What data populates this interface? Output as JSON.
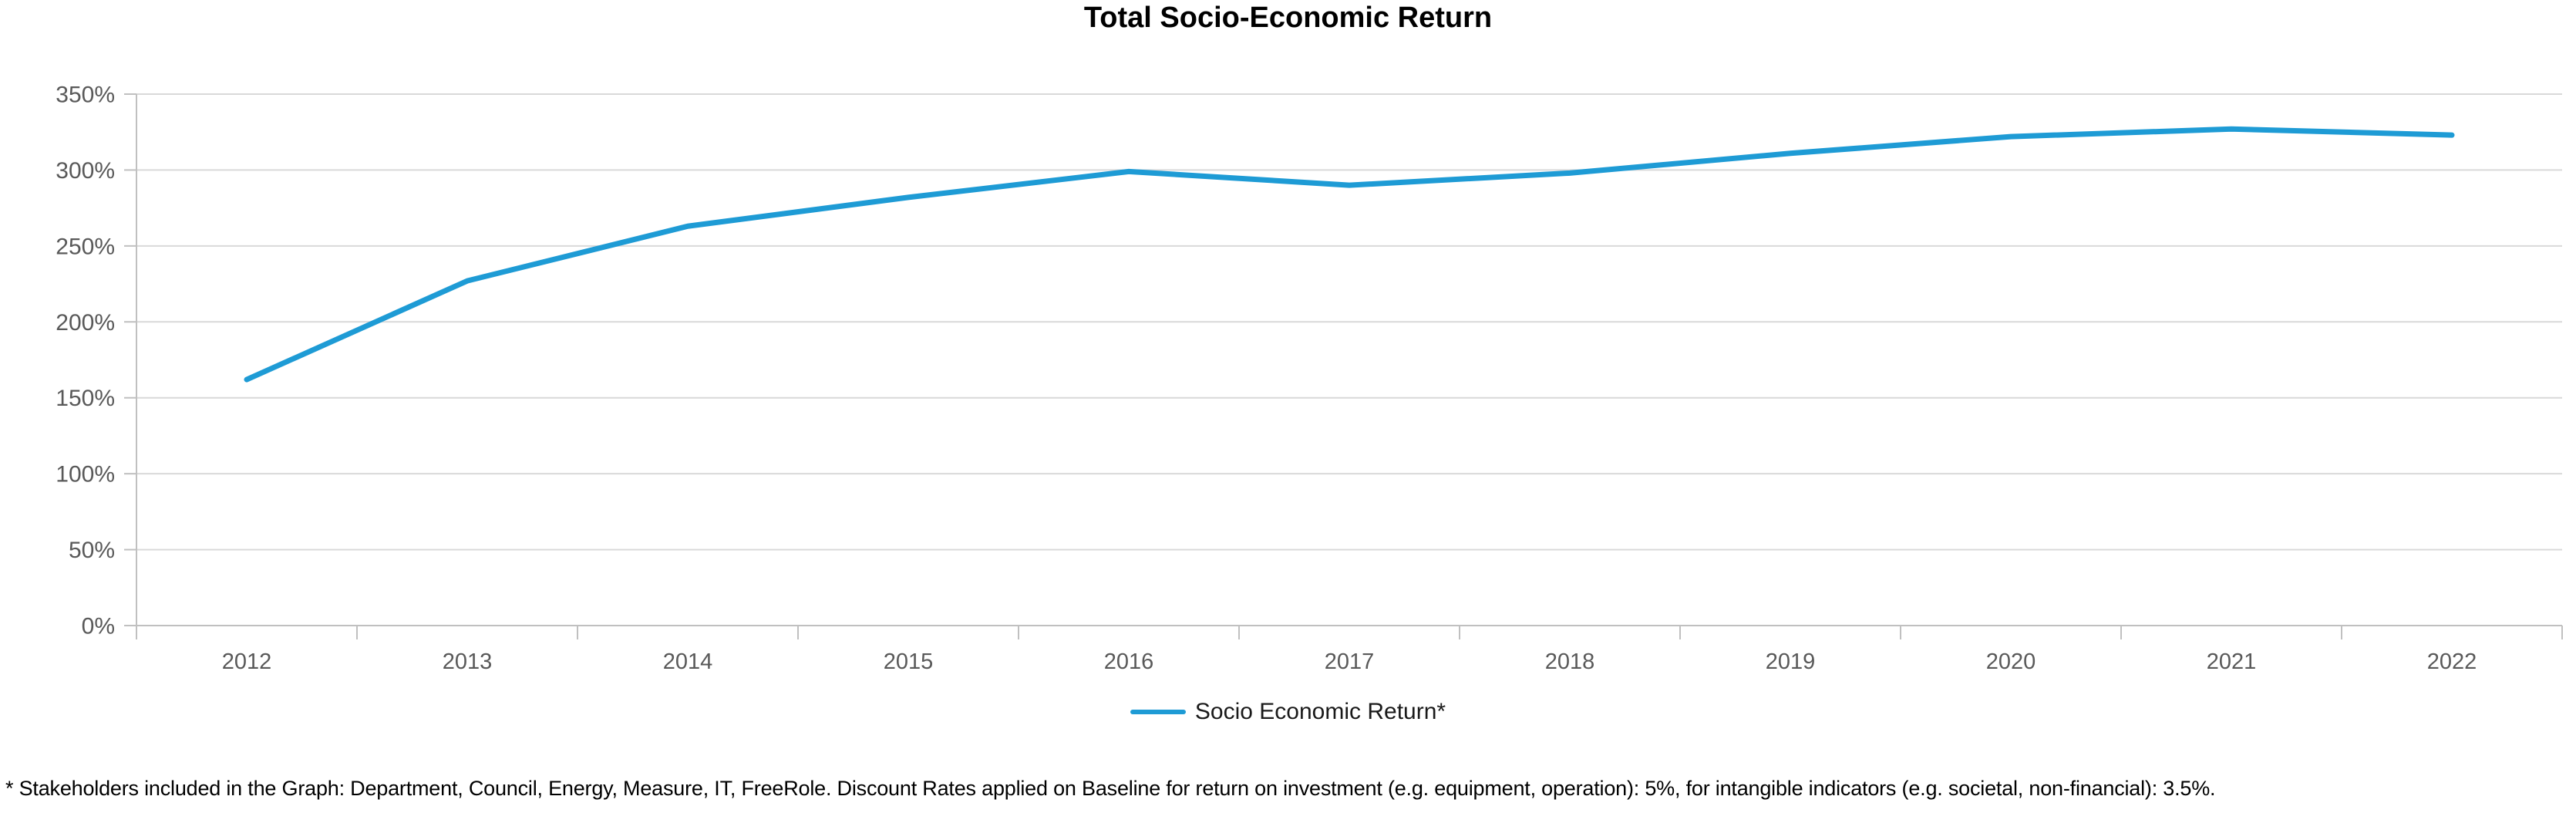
{
  "footnote": "* Stakeholders included in the Graph: Department, Council, Energy, Measure, IT, FreeRole. Discount Rates applied on Baseline for return on investment (e.g. equipment, operation): 5%, for intangible indicators (e.g. societal, non-financial): 3.5%.",
  "colors": {
    "line": "#1E9BD5",
    "grid": "#D9D9D9",
    "axis": "#C0C0C0",
    "tick_label": "#595959",
    "title_text": "#000000",
    "footnote_text": "#000000"
  },
  "chart_data": {
    "type": "line",
    "title": "Total Socio-Economic Return",
    "categories": [
      "2012",
      "2013",
      "2014",
      "2015",
      "2016",
      "2017",
      "2018",
      "2019",
      "2020",
      "2021",
      "2022"
    ],
    "series": [
      {
        "name": "Socio Economic Return*",
        "color": "#1E9BD5",
        "values": [
          162,
          227,
          263,
          282,
          299,
          290,
          298,
          311,
          322,
          327,
          323
        ]
      }
    ],
    "xlabel": "",
    "ylabel": "",
    "ylim": [
      0,
      350
    ],
    "ytick_step": 50,
    "ytick_labels": [
      "0%",
      "50%",
      "100%",
      "150%",
      "200%",
      "250%",
      "300%",
      "350%"
    ],
    "grid": true,
    "legend_position": "bottom"
  }
}
